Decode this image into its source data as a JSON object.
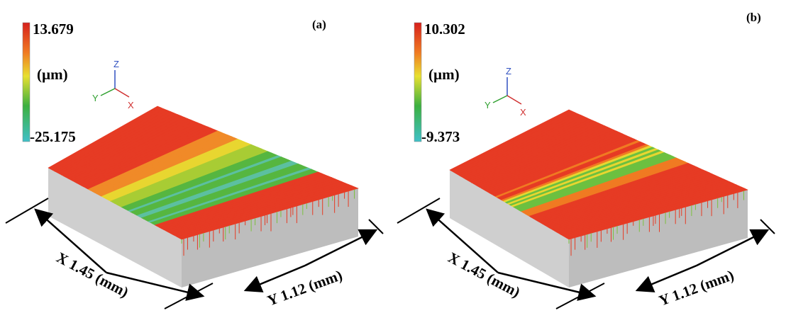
{
  "panels": [
    {
      "label": "(a)",
      "colorbar": {
        "max": "13.679",
        "unit": "(µm)",
        "min": "-25.175"
      },
      "triad": {
        "z": "Z",
        "y": "Y",
        "x": "X"
      },
      "x_dimension": "X 1.45 (mm)",
      "y_dimension": "Y 1.12 (mm)"
    },
    {
      "label": "(b)",
      "colorbar": {
        "max": "10.302",
        "unit": "(µm)",
        "min": "-9.373"
      },
      "triad": {
        "z": "Z",
        "y": "Y",
        "x": "X"
      },
      "x_dimension": "X 1.45 (mm)",
      "y_dimension": "Y 1.12 (mm)"
    }
  ]
}
